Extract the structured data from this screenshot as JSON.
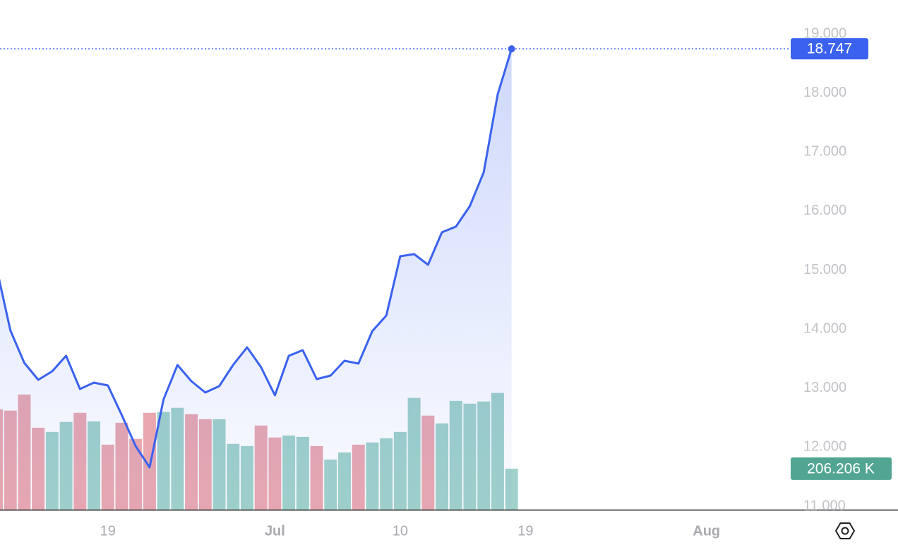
{
  "chart_data": {
    "type": "line",
    "categories": [
      null,
      null,
      null,
      null,
      null,
      null,
      null,
      null,
      "19",
      null,
      null,
      null,
      null,
      null,
      null,
      null,
      null,
      null,
      null,
      null,
      "Jul",
      null,
      null,
      null,
      null,
      null,
      null,
      null,
      null,
      "10",
      null,
      null,
      null,
      null,
      null,
      null,
      null,
      null,
      "19",
      null,
      null,
      null,
      null,
      null,
      null,
      null,
      null,
      null,
      null,
      null,
      null,
      "Aug",
      null,
      null,
      null,
      null,
      null
    ],
    "ylim": [
      10940,
      19096
    ],
    "yticks": [
      {
        "value": 11000,
        "label": "11.000"
      },
      {
        "value": 12000,
        "label": "12.000"
      },
      {
        "value": 13000,
        "label": "13.000"
      },
      {
        "value": 14000,
        "label": "14.000"
      },
      {
        "value": 15000,
        "label": "15.000"
      },
      {
        "value": 16000,
        "label": "16.000"
      },
      {
        "value": 17000,
        "label": "17.000"
      },
      {
        "value": 18000,
        "label": "18.000"
      },
      {
        "value": 19000,
        "label": "19.000"
      }
    ],
    "y2lim": [
      0,
      2420000
    ],
    "series": [
      {
        "type": "line",
        "color": "#3a62ef",
        "values": [
          15042,
          13978,
          13428,
          13140,
          13284,
          13547,
          12985,
          13093,
          13045,
          12543,
          12016,
          11658,
          12806,
          13392,
          13117,
          12925,
          13033,
          13392,
          13691,
          13356,
          12877,
          13547,
          13643,
          13152,
          13212,
          13463,
          13416,
          13966,
          14229,
          15233,
          15269,
          15090,
          15640,
          15735,
          16082,
          16656,
          17972,
          18747,
          null,
          null,
          null,
          null,
          null,
          null,
          null,
          null,
          null,
          null,
          null,
          null,
          null,
          null,
          null,
          null,
          null,
          null,
          null
        ],
        "value_labels": [
          null,
          null,
          null,
          null,
          null,
          null,
          null,
          null,
          null,
          null,
          null,
          null,
          null,
          null,
          null,
          null,
          null,
          null,
          null,
          null,
          null,
          null,
          null,
          null,
          null,
          null,
          null,
          null,
          null,
          null,
          null,
          null,
          null,
          null,
          null,
          null,
          null,
          "18.747",
          null,
          null,
          null,
          null,
          null,
          null,
          null,
          null,
          null,
          null,
          null,
          null,
          null,
          null,
          null,
          null,
          null,
          null,
          null
        ]
      },
      {
        "type": "bar",
        "axis": "y2",
        "label_color": "#52a592",
        "values": [
          505000,
          498000,
          579000,
          412000,
          391000,
          441000,
          487000,
          444000,
          327000,
          437000,
          356000,
          487000,
          491000,
          512000,
          480000,
          455000,
          455000,
          331000,
          320000,
          423000,
          363000,
          373000,
          366000,
          320000,
          252000,
          288000,
          327000,
          338000,
          359000,
          391000,
          562000,
          473000,
          434000,
          547000,
          533000,
          544000,
          587000,
          206206,
          null,
          null,
          null,
          null,
          null,
          null,
          null,
          null,
          null,
          null,
          null,
          null,
          null,
          null,
          null,
          null,
          null,
          null,
          null
        ],
        "value_labels": [
          null,
          null,
          null,
          null,
          null,
          null,
          null,
          null,
          null,
          null,
          null,
          null,
          null,
          null,
          null,
          null,
          null,
          null,
          null,
          null,
          null,
          null,
          null,
          null,
          null,
          null,
          null,
          null,
          null,
          null,
          null,
          null,
          null,
          null,
          null,
          null,
          null,
          "206.206 K",
          null,
          null,
          null,
          null,
          null,
          null,
          null,
          null,
          null,
          null,
          null,
          null,
          null,
          null,
          null,
          null,
          null,
          null,
          null
        ],
        "colors": [
          "#e9a8b0",
          "#e9a8b0",
          "#e9a8b0",
          "#e9a8b0",
          "#a0d1ca",
          "#a0d1ca",
          "#e9a8b0",
          "#a0d1ca",
          "#e9a8b0",
          "#e9a8b0",
          "#e9a8b0",
          "#e9a8b0",
          "#a0d1ca",
          "#a0d1ca",
          "#e9a8b0",
          "#e9a8b0",
          "#a0d1ca",
          "#a0d1ca",
          "#a0d1ca",
          "#e9a8b0",
          "#e9a8b0",
          "#a0d1ca",
          "#a0d1ca",
          "#e9a8b0",
          "#a0d1ca",
          "#a0d1ca",
          "#e9a8b0",
          "#a0d1ca",
          "#a0d1ca",
          "#a0d1ca",
          "#a0d1ca",
          "#e9a8b0",
          "#a0d1ca",
          "#a0d1ca",
          "#a0d1ca",
          "#a0d1ca",
          "#a0d1ca",
          "#a0d1ca",
          null,
          null,
          null,
          null,
          null,
          null,
          null,
          null,
          null,
          null,
          null,
          null,
          null,
          null,
          null,
          null,
          null,
          null,
          null
        ]
      }
    ]
  }
}
